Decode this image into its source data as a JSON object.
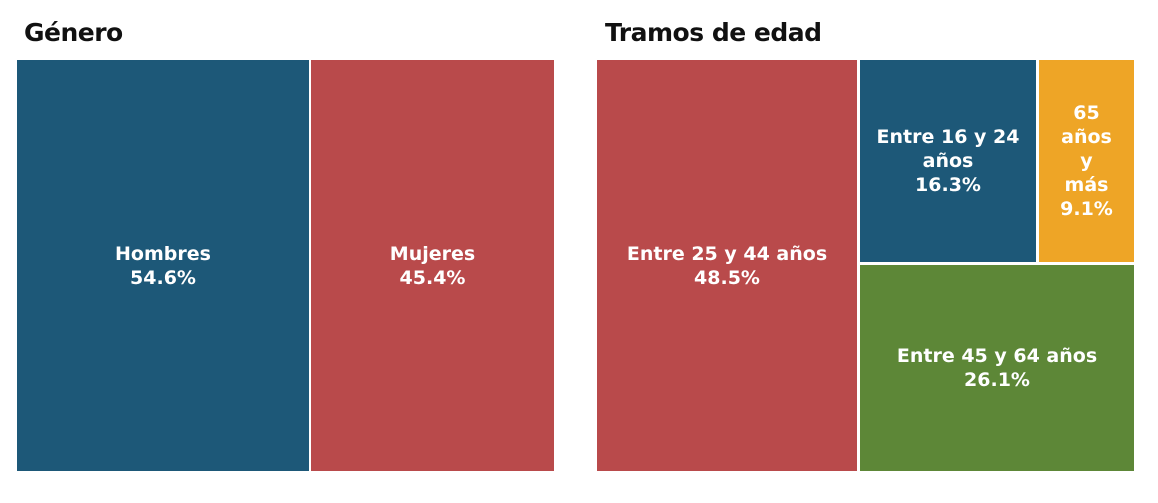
{
  "chart_data": [
    {
      "type": "treemap",
      "title": "Género",
      "items": [
        {
          "label": "Hombres",
          "value": 54.6,
          "value_label": "54.6%",
          "color": "#1d5878"
        },
        {
          "label": "Mujeres",
          "value": 45.4,
          "value_label": "45.4%",
          "color": "#b94a4b"
        }
      ]
    },
    {
      "type": "treemap",
      "title": "Tramos de edad",
      "items": [
        {
          "label": "Entre 25 y 44 años",
          "value": 48.5,
          "value_label": "48.5%",
          "color": "#b94a4b"
        },
        {
          "label": "Entre 16 y 24 años",
          "value": 16.3,
          "value_label": "16.3%",
          "color": "#1d5878"
        },
        {
          "label": "65 años y más",
          "value": 9.1,
          "value_label": "9.1%",
          "color": "#eea526"
        },
        {
          "label": "Entre 45 y 64 años",
          "value": 26.1,
          "value_label": "26.1%",
          "color": "#5d8737"
        }
      ]
    }
  ]
}
